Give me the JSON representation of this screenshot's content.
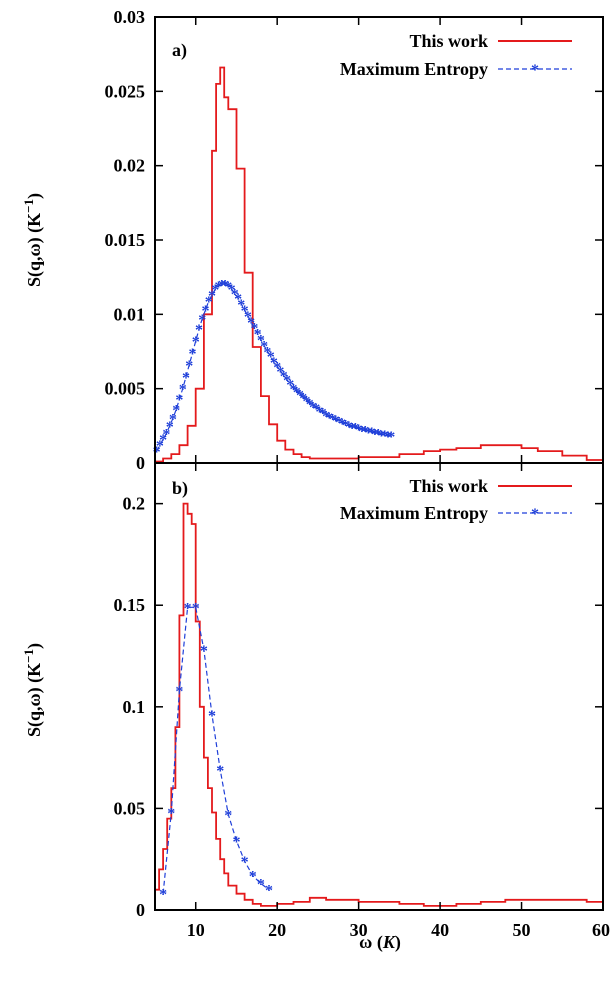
{
  "chart_data": [
    {
      "type": "line",
      "panel_label": "a)",
      "xlabel": "",
      "ylabel": "S(q,ω) (K",
      "ylabel_sup": "−1",
      "ylabel_close": ")",
      "xlim": [
        5,
        60
      ],
      "ylim": [
        0,
        0.03
      ],
      "xticks": [],
      "yticks": [
        {
          "value": 0,
          "label": "0"
        },
        {
          "value": 0.005,
          "label": "0.005"
        },
        {
          "value": 0.01,
          "label": "0.01"
        },
        {
          "value": 0.015,
          "label": "0.015"
        },
        {
          "value": 0.02,
          "label": "0.02"
        },
        {
          "value": 0.025,
          "label": "0.025"
        },
        {
          "value": 0.03,
          "label": "0.03"
        }
      ],
      "legend_position": "top-right",
      "series": [
        {
          "name": "This work",
          "style": "step",
          "color": "#e41a1c",
          "x": [
            5,
            6,
            7,
            8,
            9,
            10,
            11,
            12,
            12.5,
            13,
            13.5,
            14,
            15,
            16,
            17,
            18,
            19,
            20,
            21,
            22,
            23,
            24,
            25,
            26,
            28,
            30,
            32,
            35,
            38,
            40,
            42,
            45,
            48,
            50,
            52,
            55,
            58,
            60
          ],
          "y": [
            0.0001,
            0.0003,
            0.0006,
            0.0012,
            0.0025,
            0.005,
            0.01,
            0.021,
            0.0255,
            0.0266,
            0.0246,
            0.0238,
            0.0198,
            0.0128,
            0.0078,
            0.0045,
            0.0026,
            0.0015,
            0.0009,
            0.0006,
            0.0004,
            0.0003,
            0.0003,
            0.0003,
            0.0003,
            0.0004,
            0.0004,
            0.0006,
            0.0008,
            0.0009,
            0.001,
            0.0012,
            0.0012,
            0.001,
            0.0008,
            0.0005,
            0.0002,
            0.0001
          ]
        },
        {
          "name": "Maximum Entropy",
          "style": "dashed-marker",
          "color": "#1f3fd9",
          "x": [
            5.2,
            5.6,
            6.0,
            6.4,
            6.8,
            7.2,
            7.6,
            8.0,
            8.4,
            8.8,
            9.2,
            9.6,
            10.0,
            10.4,
            10.8,
            11.2,
            11.6,
            12.0,
            12.4,
            12.8,
            13.2,
            13.6,
            14.0,
            14.4,
            14.8,
            15.2,
            15.6,
            16.0,
            16.4,
            16.8,
            17.2,
            17.6,
            18.0,
            18.4,
            18.8,
            19.2,
            19.6,
            20.0,
            20.4,
            20.8,
            21.2,
            21.6,
            22.0,
            22.4,
            22.8,
            23.2,
            23.6,
            24.0,
            24.4,
            24.8,
            25.2,
            25.6,
            26.0,
            26.4,
            26.8,
            27.2,
            27.6,
            28.0,
            28.4,
            28.8,
            29.2,
            29.6,
            30.0,
            30.4,
            30.8,
            31.2,
            31.6,
            32.0,
            32.4,
            32.8,
            33.2,
            33.6,
            34.0
          ],
          "y": [
            0.0008,
            0.0012,
            0.0016,
            0.002,
            0.0025,
            0.003,
            0.0036,
            0.0043,
            0.005,
            0.0058,
            0.0066,
            0.0074,
            0.0082,
            0.009,
            0.0097,
            0.0103,
            0.0109,
            0.0113,
            0.0117,
            0.0119,
            0.012,
            0.012,
            0.0119,
            0.0117,
            0.0114,
            0.0111,
            0.0107,
            0.0103,
            0.0099,
            0.0095,
            0.0091,
            0.0087,
            0.0083,
            0.0079,
            0.0075,
            0.0072,
            0.0068,
            0.0065,
            0.0062,
            0.0059,
            0.0056,
            0.0053,
            0.005,
            0.0048,
            0.0046,
            0.0044,
            0.0042,
            0.004,
            0.0038,
            0.0037,
            0.0035,
            0.0034,
            0.0032,
            0.0031,
            0.003,
            0.0029,
            0.0028,
            0.0027,
            0.0026,
            0.0025,
            0.0024,
            0.0024,
            0.0023,
            0.0022,
            0.0022,
            0.0021,
            0.0021,
            0.002,
            0.002,
            0.0019,
            0.0019,
            0.0018,
            0.0018
          ]
        }
      ]
    },
    {
      "type": "line",
      "panel_label": "b)",
      "xlabel": "ω (K)",
      "xlabel_main": "ω (",
      "xlabel_italic": "K",
      "xlabel_close": ")",
      "ylabel": "S(q,ω) (K",
      "ylabel_sup": "−1",
      "ylabel_close": ")",
      "xlim": [
        5,
        60
      ],
      "ylim": [
        0,
        0.22
      ],
      "xticks": [
        {
          "value": 10,
          "label": "10"
        },
        {
          "value": 20,
          "label": "20"
        },
        {
          "value": 30,
          "label": "30"
        },
        {
          "value": 40,
          "label": "40"
        },
        {
          "value": 50,
          "label": "50"
        },
        {
          "value": 60,
          "label": "60"
        }
      ],
      "yticks": [
        {
          "value": 0,
          "label": "0"
        },
        {
          "value": 0.05,
          "label": "0.05"
        },
        {
          "value": 0.1,
          "label": "0.1"
        },
        {
          "value": 0.15,
          "label": "0.15"
        },
        {
          "value": 0.2,
          "label": "0.2"
        }
      ],
      "legend_position": "top-right",
      "series": [
        {
          "name": "This work",
          "style": "step",
          "color": "#e41a1c",
          "x": [
            5,
            5.5,
            6,
            6.5,
            7,
            7.5,
            8,
            8.5,
            9,
            9.5,
            10,
            10.5,
            11,
            11.5,
            12,
            12.5,
            13,
            13.5,
            14,
            15,
            16,
            17,
            18,
            20,
            22,
            24,
            26,
            28,
            30,
            32,
            35,
            38,
            40,
            42,
            45,
            48,
            50,
            52,
            55,
            58,
            60
          ],
          "y": [
            0.01,
            0.02,
            0.03,
            0.045,
            0.06,
            0.09,
            0.145,
            0.2,
            0.195,
            0.19,
            0.142,
            0.1,
            0.075,
            0.06,
            0.048,
            0.035,
            0.025,
            0.018,
            0.012,
            0.008,
            0.005,
            0.003,
            0.002,
            0.003,
            0.004,
            0.006,
            0.005,
            0.005,
            0.004,
            0.004,
            0.003,
            0.002,
            0.002,
            0.003,
            0.004,
            0.005,
            0.005,
            0.005,
            0.005,
            0.004,
            0.004
          ],
          "_note": ""
        },
        {
          "name": "Maximum Entropy",
          "style": "dashed-marker",
          "color": "#1f3fd9",
          "x": [
            6,
            7,
            8,
            9,
            10,
            11,
            12,
            13,
            14,
            15,
            16,
            17,
            18,
            19
          ],
          "y": [
            0.008,
            0.048,
            0.108,
            0.149,
            0.149,
            0.128,
            0.096,
            0.069,
            0.047,
            0.034,
            0.024,
            0.017,
            0.013,
            0.01
          ]
        }
      ]
    }
  ]
}
